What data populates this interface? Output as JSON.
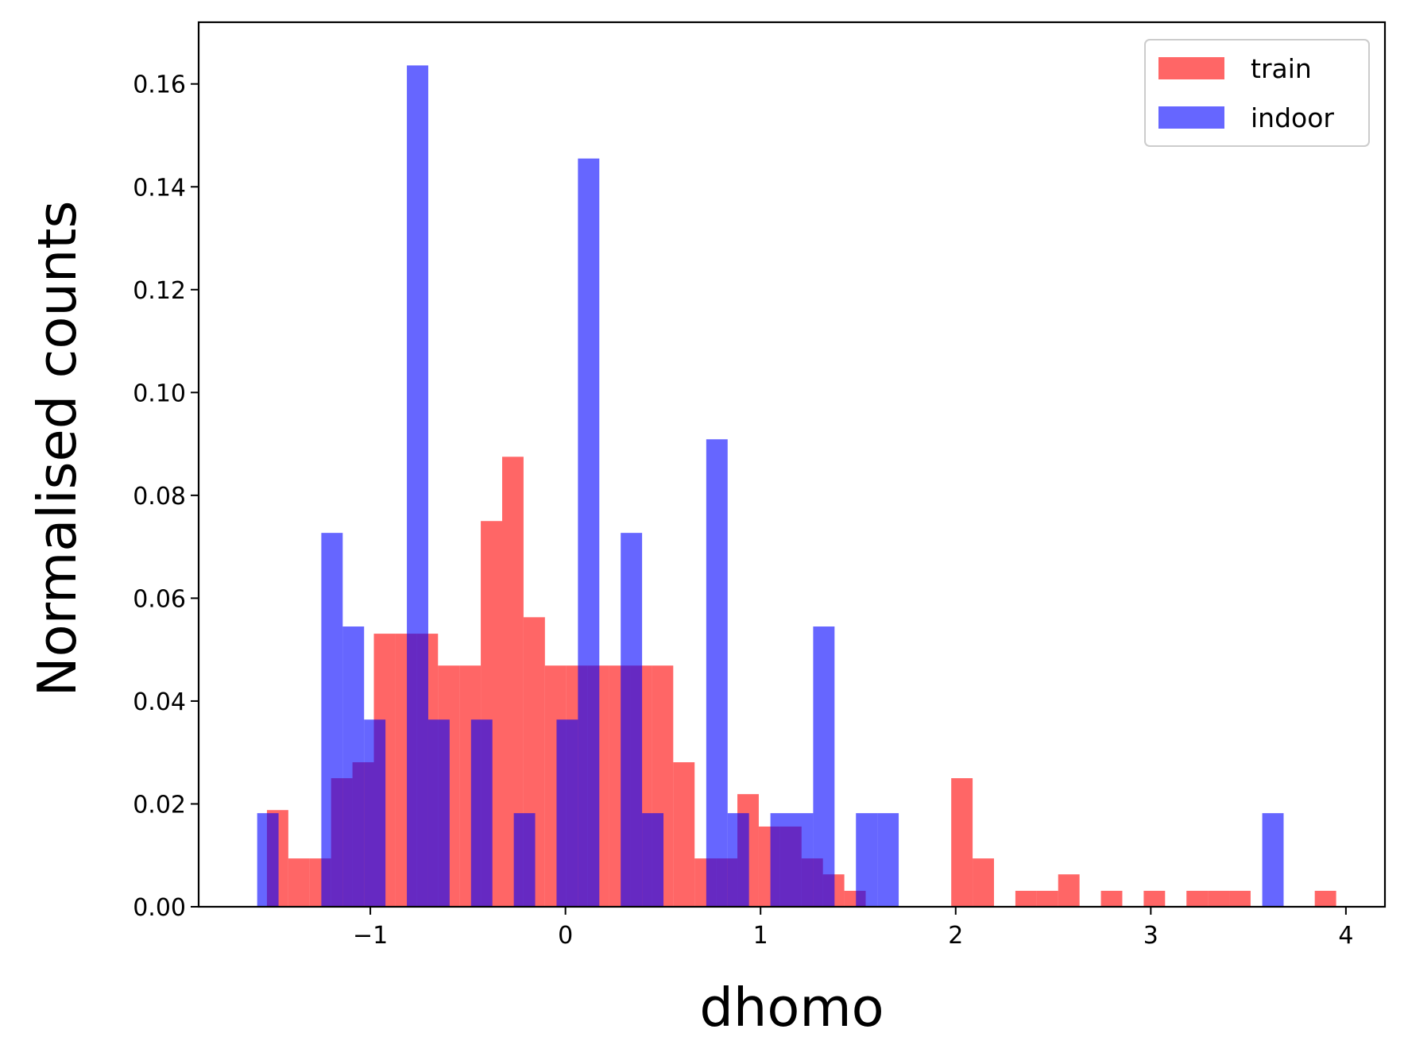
{
  "chart_data": {
    "type": "histogram",
    "title": "",
    "xlabel": "dhomo",
    "ylabel": "Normalised counts",
    "xlim": [
      -1.88,
      4.2
    ],
    "ylim": [
      0,
      0.172
    ],
    "xticks": [
      -1,
      0,
      1,
      2,
      3,
      4
    ],
    "xtick_labels": [
      "−1",
      "0",
      "1",
      "2",
      "3",
      "4"
    ],
    "yticks": [
      0,
      0.02,
      0.04,
      0.06,
      0.08,
      0.1,
      0.12,
      0.14,
      0.16
    ],
    "ytick_labels": [
      "0.00",
      "0.02",
      "0.04",
      "0.06",
      "0.08",
      "0.10",
      "0.12",
      "0.14",
      "0.16"
    ],
    "grid": false,
    "legend_position": "upper right",
    "series": [
      {
        "name": "train",
        "color": "#ff0000",
        "opacity": 0.6,
        "bin_start": -1.53,
        "bin_width": 0.1096,
        "values": [
          0.0188,
          0.0094,
          0.0094,
          0.025,
          0.0281,
          0.0531,
          0.0531,
          0.0531,
          0.0469,
          0.0469,
          0.075,
          0.0875,
          0.0563,
          0.0469,
          0.0469,
          0.0469,
          0.0469,
          0.0469,
          0.0469,
          0.0281,
          0.0094,
          0.0094,
          0.0219,
          0.0156,
          0.0156,
          0.0094,
          0.0063,
          0.0031,
          0.0,
          0.0,
          0.0,
          0.0,
          0.025,
          0.0094,
          0.0,
          0.0031,
          0.0031,
          0.0063,
          0.0,
          0.0031,
          0.0,
          0.0031,
          0.0,
          0.0031,
          0.0031,
          0.0031,
          0.0,
          0.0,
          0.0,
          0.0031
        ]
      },
      {
        "name": "indoor",
        "color": "#0000ff",
        "opacity": 0.6,
        "bin_start": -1.58,
        "bin_width": 0.1096,
        "values": [
          0.0182,
          0.0,
          0.0,
          0.0727,
          0.0545,
          0.0364,
          0.0,
          0.1636,
          0.0364,
          0.0,
          0.0364,
          0.0,
          0.0182,
          0.0,
          0.0364,
          0.1455,
          0.0,
          0.0727,
          0.0182,
          0.0,
          0.0,
          0.0909,
          0.0182,
          0.0,
          0.0182,
          0.0182,
          0.0545,
          0.0,
          0.0182,
          0.0182,
          0.0,
          0.0,
          0.0,
          0.0,
          0.0,
          0.0,
          0.0,
          0.0,
          0.0,
          0.0,
          0.0,
          0.0,
          0.0,
          0.0,
          0.0,
          0.0,
          0.0,
          0.0182
        ]
      }
    ]
  }
}
